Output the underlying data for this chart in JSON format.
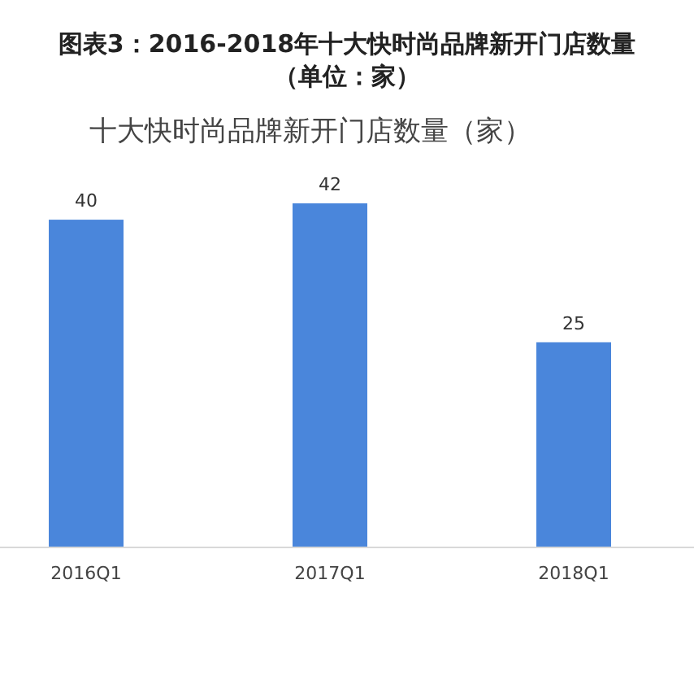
{
  "chart_data": {
    "type": "bar",
    "title": "图表3：2016-2018年十大快时尚品牌新开门店数量（单位：家）",
    "subtitle": "十大快时尚品牌新开门店数量（家）",
    "categories": [
      "2016Q1",
      "2017Q1",
      "2018Q1"
    ],
    "values": [
      40,
      42,
      25
    ],
    "color": "#4a86db",
    "data_labels": true
  }
}
